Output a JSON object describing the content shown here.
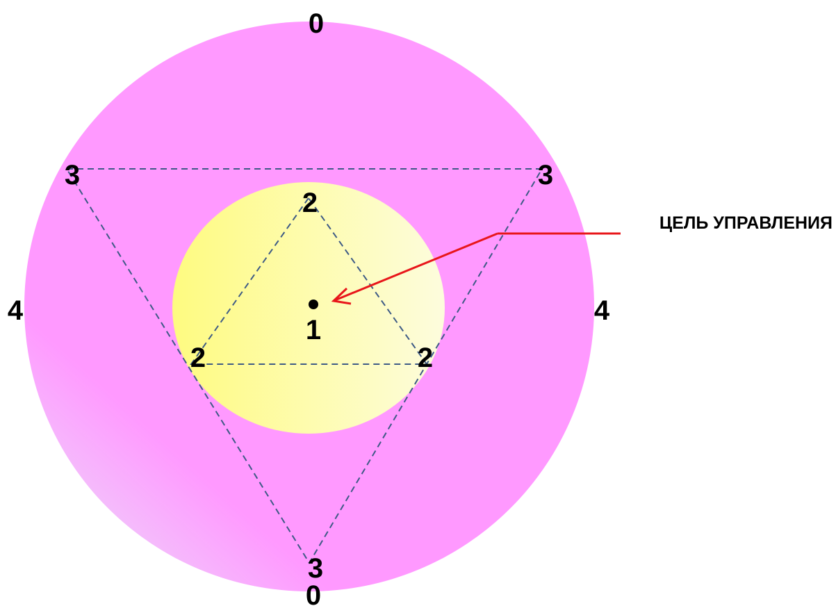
{
  "diagram": {
    "labels": {
      "top_zero": "0",
      "bottom_zero": "0",
      "left_four": "4",
      "right_four": "4",
      "outer_vertex_top_left": "3",
      "outer_vertex_top_right": "3",
      "outer_vertex_bottom": "3",
      "inner_vertex_top": "2",
      "inner_vertex_left": "2",
      "inner_vertex_right": "2",
      "center": "1"
    },
    "callout": {
      "text": "ЦЕЛЬ УПРАВЛЕНИЯ"
    },
    "colors": {
      "outer_circle": "#ff99ff",
      "outer_circle_fade": "#eed2fa",
      "inner_circle_left": "#fefb80",
      "inner_circle_right": "#fdfcdd",
      "dashed_lines": "#3d5a85",
      "arrow": "#e8161a",
      "center_dot": "#000000"
    }
  }
}
